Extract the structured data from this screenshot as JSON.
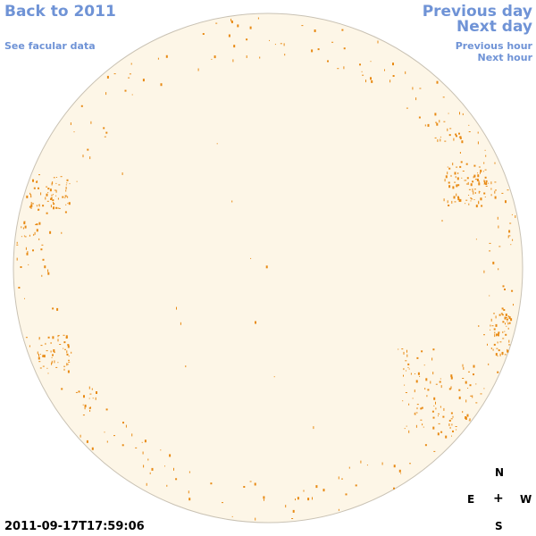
{
  "nav": {
    "back": "Back to 2011",
    "facular": "See facular data",
    "previous_day": "Previous day",
    "next_day": "Next day",
    "previous_hour": "Previous hour",
    "next_hour": "Next hour"
  },
  "timestamp": "2011-09-17T17:59:06",
  "compass": {
    "north": "N",
    "east": "E",
    "center": "+",
    "west": "W",
    "south": "S"
  },
  "colors": {
    "disk_fill": "#fdf6e7",
    "disk_edge": "#c9c2b4",
    "facula": "#e88a14",
    "link": "#6f93d6"
  }
}
